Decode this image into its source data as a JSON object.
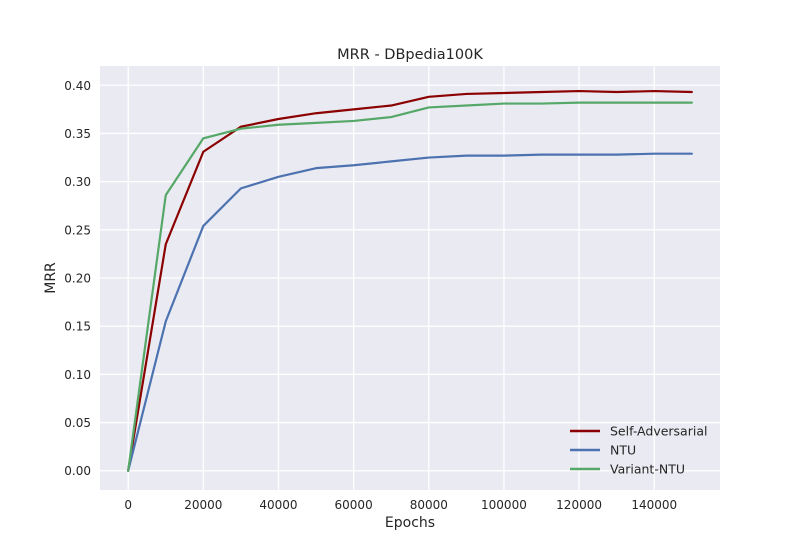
{
  "chart_data": {
    "type": "line",
    "title": "MRR - DBpedia100K",
    "xlabel": "Epochs",
    "ylabel": "MRR",
    "xlim": [
      -7500,
      157500
    ],
    "ylim": [
      -0.02,
      0.42
    ],
    "xticks": [
      0,
      20000,
      40000,
      60000,
      80000,
      100000,
      120000,
      140000
    ],
    "xtick_labels": [
      "0",
      "20000",
      "40000",
      "60000",
      "80000",
      "100000",
      "120000",
      "140000"
    ],
    "yticks": [
      0.0,
      0.05,
      0.1,
      0.15,
      0.2,
      0.25,
      0.3,
      0.35,
      0.4
    ],
    "ytick_labels": [
      "0.00",
      "0.05",
      "0.10",
      "0.15",
      "0.20",
      "0.25",
      "0.30",
      "0.35",
      "0.40"
    ],
    "grid": true,
    "legend_position": "lower-right",
    "x": [
      0,
      10000,
      20000,
      30000,
      40000,
      50000,
      60000,
      70000,
      80000,
      90000,
      100000,
      110000,
      120000,
      130000,
      140000,
      150000
    ],
    "series": [
      {
        "name": "Self-Adversarial",
        "color": "#8b0000",
        "values": [
          0.0,
          0.235,
          0.331,
          0.357,
          0.365,
          0.371,
          0.375,
          0.379,
          0.388,
          0.391,
          0.392,
          0.393,
          0.394,
          0.393,
          0.394,
          0.393
        ]
      },
      {
        "name": "NTU",
        "color": "#4c72b0",
        "values": [
          0.0,
          0.155,
          0.254,
          0.293,
          0.305,
          0.314,
          0.317,
          0.321,
          0.325,
          0.327,
          0.327,
          0.328,
          0.328,
          0.328,
          0.329,
          0.329
        ]
      },
      {
        "name": "Variant-NTU",
        "color": "#55a868",
        "values": [
          0.0,
          0.286,
          0.345,
          0.355,
          0.359,
          0.361,
          0.363,
          0.367,
          0.377,
          0.379,
          0.381,
          0.381,
          0.382,
          0.382,
          0.382,
          0.382
        ]
      }
    ]
  }
}
